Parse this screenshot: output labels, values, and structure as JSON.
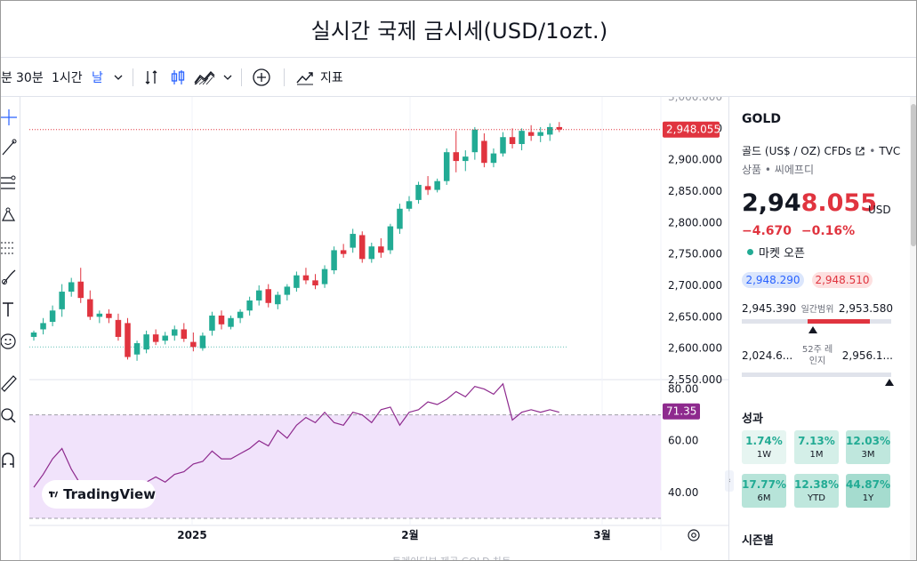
{
  "page": {
    "title": "실시간 국제 금시세(USD/1ozt.)"
  },
  "toolbar": {
    "cut_label": "분",
    "interval_30": "30분",
    "interval_1h": "1시간",
    "interval_day": "날",
    "indicators_label": "지표",
    "icons": [
      "chevron-down-icon",
      "compare-icon",
      "candles-icon",
      "area-chart-icon",
      "plus-circle-icon",
      "indicators-icon"
    ]
  },
  "chart_data": [
    {
      "type": "candlestick",
      "title": "",
      "x_axis_labels": [
        "2025",
        "2월",
        "3월"
      ],
      "y_ticks": [
        "2,550.000",
        "2,600.000",
        "2,650.000",
        "2,700.000",
        "2,750.000",
        "2,800.000",
        "2,850.000",
        "2,900.000",
        "2,950.000",
        "3,000.000"
      ],
      "ylim": [
        2550,
        3000
      ],
      "last_price_label": "2,948.055",
      "up_color": "#22ab94",
      "down_color": "#e0343f",
      "ohlc": [
        [
          2618,
          2628,
          2612,
          2625
        ],
        [
          2630,
          2648,
          2622,
          2640
        ],
        [
          2642,
          2668,
          2635,
          2660
        ],
        [
          2662,
          2702,
          2650,
          2690
        ],
        [
          2690,
          2712,
          2682,
          2705
        ],
        [
          2706,
          2728,
          2672,
          2680
        ],
        [
          2678,
          2692,
          2645,
          2650
        ],
        [
          2650,
          2660,
          2640,
          2655
        ],
        [
          2655,
          2662,
          2640,
          2648
        ],
        [
          2645,
          2655,
          2612,
          2618
        ],
        [
          2640,
          2648,
          2582,
          2586
        ],
        [
          2590,
          2612,
          2580,
          2608
        ],
        [
          2598,
          2628,
          2592,
          2622
        ],
        [
          2622,
          2630,
          2605,
          2610
        ],
        [
          2612,
          2626,
          2606,
          2620
        ],
        [
          2620,
          2636,
          2612,
          2630
        ],
        [
          2630,
          2640,
          2610,
          2615
        ],
        [
          2610,
          2625,
          2595,
          2602
        ],
        [
          2600,
          2625,
          2596,
          2620
        ],
        [
          2628,
          2658,
          2620,
          2652
        ],
        [
          2652,
          2660,
          2630,
          2638
        ],
        [
          2634,
          2652,
          2630,
          2648
        ],
        [
          2648,
          2662,
          2640,
          2658
        ],
        [
          2660,
          2682,
          2652,
          2676
        ],
        [
          2676,
          2700,
          2668,
          2692
        ],
        [
          2694,
          2702,
          2665,
          2672
        ],
        [
          2670,
          2690,
          2662,
          2685
        ],
        [
          2685,
          2702,
          2676,
          2698
        ],
        [
          2696,
          2722,
          2690,
          2716
        ],
        [
          2716,
          2728,
          2702,
          2708
        ],
        [
          2708,
          2718,
          2694,
          2700
        ],
        [
          2702,
          2732,
          2696,
          2726
        ],
        [
          2724,
          2762,
          2718,
          2756
        ],
        [
          2756,
          2766,
          2744,
          2750
        ],
        [
          2760,
          2790,
          2752,
          2782
        ],
        [
          2780,
          2786,
          2736,
          2742
        ],
        [
          2742,
          2768,
          2736,
          2762
        ],
        [
          2762,
          2775,
          2744,
          2752
        ],
        [
          2756,
          2798,
          2750,
          2794
        ],
        [
          2790,
          2830,
          2782,
          2822
        ],
        [
          2822,
          2842,
          2818,
          2834
        ],
        [
          2836,
          2865,
          2830,
          2860
        ],
        [
          2858,
          2874,
          2844,
          2852
        ],
        [
          2852,
          2870,
          2848,
          2866
        ],
        [
          2866,
          2918,
          2860,
          2912
        ],
        [
          2912,
          2946,
          2880,
          2898
        ],
        [
          2898,
          2915,
          2882,
          2905
        ],
        [
          2912,
          2952,
          2900,
          2948
        ],
        [
          2930,
          2942,
          2888,
          2895
        ],
        [
          2895,
          2918,
          2888,
          2910
        ],
        [
          2910,
          2944,
          2905,
          2936
        ],
        [
          2936,
          2950,
          2918,
          2925
        ],
        [
          2925,
          2950,
          2915,
          2946
        ],
        [
          2944,
          2955,
          2930,
          2938
        ],
        [
          2938,
          2952,
          2928,
          2944
        ],
        [
          2940,
          2958,
          2930,
          2952
        ],
        [
          2952,
          2960,
          2944,
          2948
        ]
      ]
    },
    {
      "type": "line",
      "title": "",
      "series_name": "RSI",
      "y_ticks": [
        "40.00",
        "60.00",
        "80.00"
      ],
      "ylim": [
        30,
        85
      ],
      "band": [
        30,
        70
      ],
      "last_value_label": "71.35",
      "values": [
        42,
        47,
        53,
        57,
        49,
        43,
        44,
        43,
        41,
        37,
        41,
        44,
        44,
        46,
        44,
        47,
        48,
        51,
        52,
        56,
        53,
        53,
        55,
        57,
        60,
        58,
        64,
        61,
        66,
        69,
        67,
        71,
        67,
        66,
        71,
        70,
        67,
        72,
        73,
        66,
        71,
        72,
        75,
        74,
        76,
        79,
        77,
        81,
        80,
        78,
        82,
        68,
        71,
        72,
        71,
        72,
        71
      ]
    }
  ],
  "sidebar": {
    "symbol": "GOLD",
    "description": "골드 (US$ / OZ) CFDs",
    "exchange": "TVC",
    "category": "상품",
    "source": "씨에프디",
    "price_prefix": "2,94",
    "price_suffix": "8.055",
    "currency": "USD",
    "change": "−4.670",
    "change_pct": "−0.16%",
    "market_status": "마켓 오픈",
    "bid": "2,948.290",
    "ask": "2,948.510",
    "day_low": "2,945.390",
    "day_label": "일간범위",
    "day_high": "2,953.580",
    "day_fill_fraction": 0.42,
    "wk52_low": "2,024.6...",
    "wk52_label": "52주 레인지",
    "wk52_high": "2,956.1...",
    "wk52_position": 0.99,
    "performance_title": "성과",
    "performance": [
      {
        "value": "1.74%",
        "label": "1W"
      },
      {
        "value": "7.13%",
        "label": "1M"
      },
      {
        "value": "12.03%",
        "label": "3M"
      },
      {
        "value": "17.77%",
        "label": "6M"
      },
      {
        "value": "12.38%",
        "label": "YTD"
      },
      {
        "value": "44.87%",
        "label": "1Y"
      }
    ],
    "seasonal_title": "시즌별"
  },
  "watermark": {
    "brand": "TradingView"
  },
  "footer": {
    "faded_text": "트레이딩뷰 제공 GOLD 차트"
  },
  "colors": {
    "up": "#22ab94",
    "down": "#e0343f",
    "rsi_line": "#8e2a8e",
    "rsi_band": "#f1e3fb",
    "accent_blue": "#2962ff"
  }
}
